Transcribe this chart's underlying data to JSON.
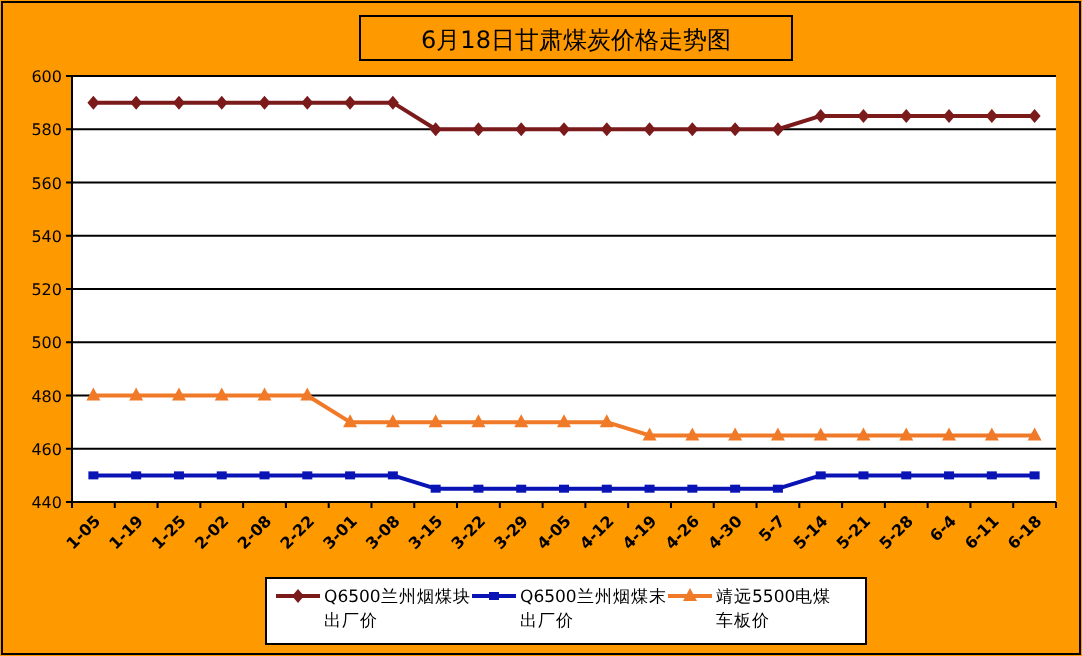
{
  "chart_data": {
    "type": "line",
    "title": "6月18日甘肃煤炭价格走势图",
    "categories": [
      "1-05",
      "1-19",
      "1-25",
      "2-02",
      "2-08",
      "2-22",
      "3-01",
      "3-08",
      "3-15",
      "3-22",
      "3-29",
      "4-05",
      "4-12",
      "4-19",
      "4-26",
      "4-30",
      "5-7",
      "5-14",
      "5-21",
      "5-28",
      "6-4",
      "6-11",
      "6-18"
    ],
    "series": [
      {
        "name": "Q6500兰州烟煤块出厂价",
        "color": "#7b1a1a",
        "marker": "diamond",
        "values": [
          590,
          590,
          590,
          590,
          590,
          590,
          590,
          590,
          580,
          580,
          580,
          580,
          580,
          580,
          580,
          580,
          580,
          585,
          585,
          585,
          585,
          585,
          585
        ]
      },
      {
        "name": "Q6500兰州烟煤末出厂价",
        "color": "#0a14b4",
        "marker": "square",
        "values": [
          450,
          450,
          450,
          450,
          450,
          450,
          450,
          450,
          445,
          445,
          445,
          445,
          445,
          445,
          445,
          445,
          445,
          450,
          450,
          450,
          450,
          450,
          450
        ]
      },
      {
        "name": "靖远5500电煤车板价",
        "color": "#f07a28",
        "marker": "triangle",
        "values": [
          480,
          480,
          480,
          480,
          480,
          480,
          470,
          470,
          470,
          470,
          470,
          470,
          470,
          465,
          465,
          465,
          465,
          465,
          465,
          465,
          465,
          465,
          465
        ]
      }
    ],
    "ylim": [
      440,
      600
    ],
    "yticks": [
      440,
      460,
      480,
      500,
      520,
      540,
      560,
      580,
      600
    ],
    "grid": "y",
    "legend": "bottom"
  }
}
